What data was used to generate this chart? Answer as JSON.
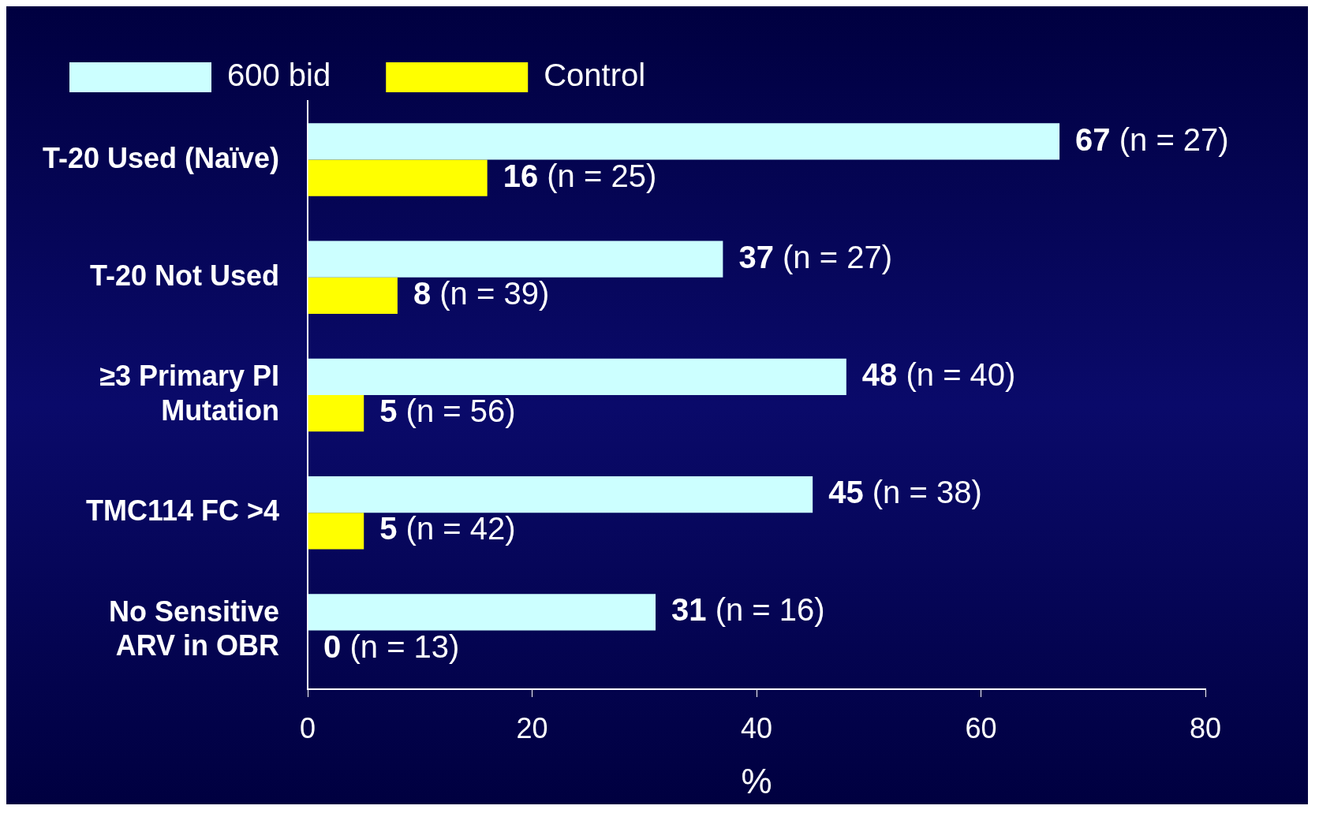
{
  "chart_data": {
    "type": "bar",
    "orientation": "horizontal",
    "categories": [
      "T-20 Used (Naïve)",
      "T-20 Not Used",
      "≥3 Primary PI Mutation",
      "TMC114 FC >4",
      "No Sensitive ARV in OBR"
    ],
    "series": [
      {
        "name": "600 bid",
        "color": "#ccffff",
        "values": [
          67,
          37,
          48,
          45,
          31
        ],
        "value_labels": [
          "67 (n = 27)",
          "37 (n = 27)",
          "48 (n = 40)",
          "45 (n = 38)",
          "31 (n = 16)"
        ]
      },
      {
        "name": "Control",
        "color": "#ffff00",
        "values": [
          16,
          8,
          5,
          5,
          0
        ],
        "value_labels": [
          "16 (n = 25)",
          "8 (n = 39)",
          "5 (n = 56)",
          "5 (n = 42)",
          "0 (n = 13)"
        ]
      }
    ],
    "xlabel": "%",
    "xlim": [
      0,
      80
    ],
    "xticks": [
      0,
      20,
      40,
      60,
      80
    ],
    "grid": false,
    "legend": "top left"
  }
}
